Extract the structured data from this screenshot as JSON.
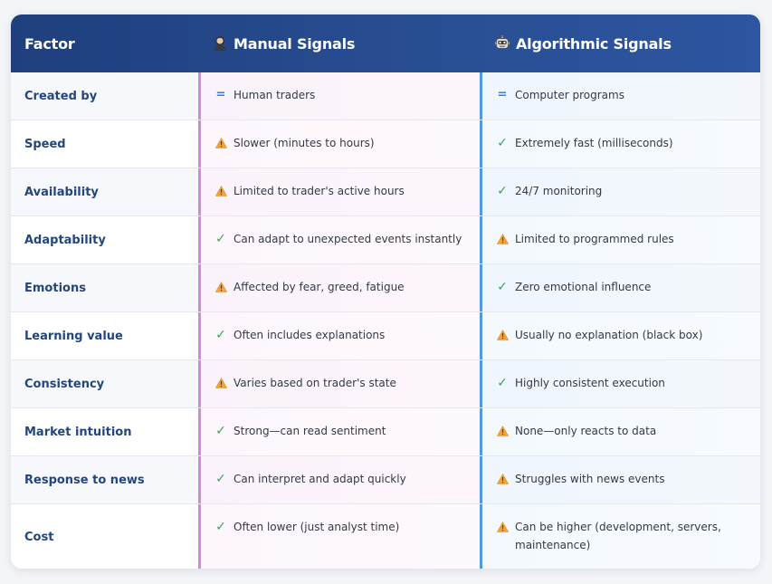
{
  "header": {
    "factor": "Factor",
    "manual": "Manual Signals",
    "algo": "Algorithmic Signals",
    "manual_icon": "person-icon",
    "algo_icon": "robot-icon"
  },
  "colors": {
    "header_bg": "#294f94",
    "factor_text": "#24467f",
    "manual_accent": "#cf8ad8",
    "algo_accent": "#4e9ce0",
    "check": "#3aa35b",
    "warning": "#f2a33a",
    "equal": "#3a7fd0"
  },
  "rows": [
    {
      "factor": "Created by",
      "manual": {
        "icon": "equal-icon",
        "text": "Human traders"
      },
      "algo": {
        "icon": "equal-icon",
        "text": "Computer programs"
      }
    },
    {
      "factor": "Speed",
      "manual": {
        "icon": "warning-icon",
        "text": "Slower (minutes to hours)"
      },
      "algo": {
        "icon": "check-icon",
        "text": "Extremely fast (milliseconds)"
      }
    },
    {
      "factor": "Availability",
      "manual": {
        "icon": "warning-icon",
        "text": "Limited to trader's active hours"
      },
      "algo": {
        "icon": "check-icon",
        "text": "24/7 monitoring"
      }
    },
    {
      "factor": "Adaptability",
      "manual": {
        "icon": "check-icon",
        "text": "Can adapt to unexpected events instantly"
      },
      "algo": {
        "icon": "warning-icon",
        "text": "Limited to programmed rules"
      }
    },
    {
      "factor": "Emotions",
      "manual": {
        "icon": "warning-icon",
        "text": "Affected by fear, greed, fatigue"
      },
      "algo": {
        "icon": "check-icon",
        "text": "Zero emotional influence"
      }
    },
    {
      "factor": "Learning value",
      "manual": {
        "icon": "check-icon",
        "text": "Often includes explanations"
      },
      "algo": {
        "icon": "warning-icon",
        "text": "Usually no explanation (black box)"
      }
    },
    {
      "factor": "Consistency",
      "manual": {
        "icon": "warning-icon",
        "text": "Varies based on trader's state"
      },
      "algo": {
        "icon": "check-icon",
        "text": "Highly consistent execution"
      }
    },
    {
      "factor": "Market intuition",
      "manual": {
        "icon": "check-icon",
        "text": "Strong—can read sentiment"
      },
      "algo": {
        "icon": "warning-icon",
        "text": "None—only reacts to data"
      }
    },
    {
      "factor": "Response to news",
      "manual": {
        "icon": "check-icon",
        "text": "Can interpret and adapt quickly"
      },
      "algo": {
        "icon": "warning-icon",
        "text": "Struggles with news events"
      }
    },
    {
      "factor": "Cost",
      "manual": {
        "icon": "check-icon",
        "text": "Often lower (just analyst time)"
      },
      "algo": {
        "icon": "warning-icon",
        "text": "Can be higher (development, servers, maintenance)"
      }
    }
  ]
}
